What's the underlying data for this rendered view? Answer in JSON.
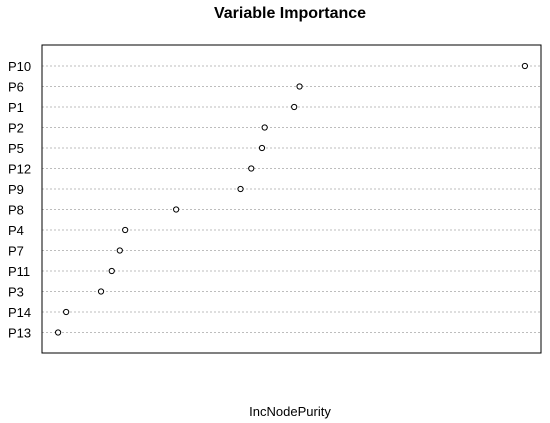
{
  "chart_data": {
    "type": "scatter",
    "title": "Variable Importance",
    "xlabel": "IncNodePurity",
    "ylabel": "",
    "categories": [
      "P10",
      "P6",
      "P1",
      "P2",
      "P5",
      "P12",
      "P9",
      "P8",
      "P4",
      "P7",
      "P11",
      "P3",
      "P14",
      "P13"
    ],
    "values": [
      100,
      58,
      57,
      51.5,
      51,
      49,
      47,
      35,
      25.5,
      24.5,
      23,
      21,
      14.5,
      13
    ],
    "xlim": [
      10,
      103
    ],
    "grid": true,
    "legend": "none",
    "colors": {
      "point_stroke": "#000000",
      "grid": "#bdbdbd"
    }
  }
}
